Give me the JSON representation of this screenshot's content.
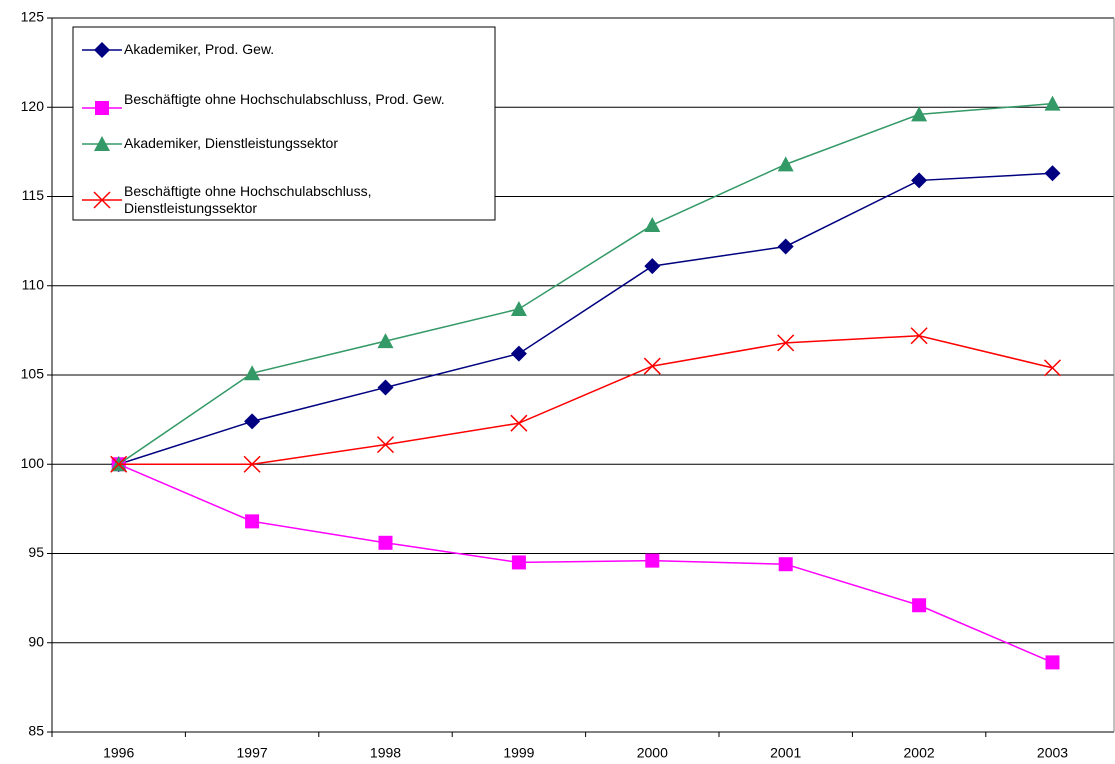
{
  "chart_data": {
    "type": "line",
    "categories": [
      "1996",
      "1997",
      "1998",
      "1999",
      "2000",
      "2001",
      "2002",
      "2003"
    ],
    "series": [
      {
        "name": "Akademiker, Prod. Gew.",
        "color": "#000080",
        "marker": "diamond",
        "values": [
          100,
          102.4,
          104.3,
          106.2,
          111.1,
          112.2,
          115.9,
          116.3
        ]
      },
      {
        "name": "Beschäftigte ohne Hochschulabschluss, Prod. Gew.",
        "color": "#ff00ff",
        "marker": "square",
        "values": [
          100,
          96.8,
          95.6,
          94.5,
          94.6,
          94.4,
          92.1,
          88.9
        ]
      },
      {
        "name": "Akademiker, Dienstleistungssektor",
        "color": "#339966",
        "marker": "triangle",
        "values": [
          100,
          105.1,
          106.9,
          108.7,
          113.4,
          116.8,
          119.6,
          120.2
        ]
      },
      {
        "name": "Beschäftigte ohne Hochschulabschluss, Dienstleistungssektor",
        "color": "#ff0000",
        "marker": "x",
        "values": [
          100,
          100,
          101.1,
          102.3,
          105.5,
          106.8,
          107.2,
          105.4
        ]
      }
    ],
    "ylim": [
      85,
      125
    ],
    "yticks": [
      85,
      90,
      95,
      100,
      105,
      110,
      115,
      120,
      125
    ],
    "grid": true,
    "legend": "upper left"
  }
}
